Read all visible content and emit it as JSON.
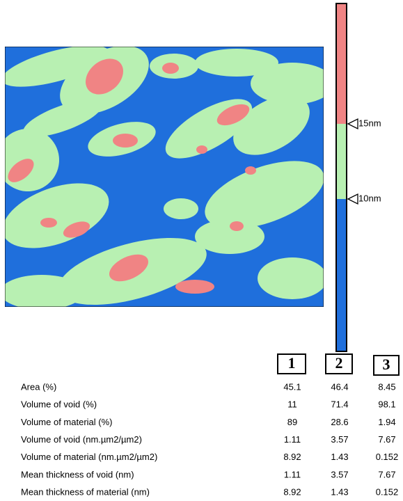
{
  "colorbar": {
    "labels": [
      "15nm",
      "10nm"
    ]
  },
  "columns": [
    "1",
    "2",
    "3"
  ],
  "table": {
    "rows": [
      [
        "Area (%)",
        "45.1",
        "46.4",
        "8.45"
      ],
      [
        "Volume of void (%)",
        "11",
        "71.4",
        "98.1"
      ],
      [
        "Volume of material (%)",
        "89",
        "28.6",
        "1.94"
      ],
      [
        "Volume of void (nm.µm2/µm2)",
        "1.11",
        "3.57",
        "7.67"
      ],
      [
        "Volume of material (nm.µm2/µm2)",
        "8.92",
        "1.43",
        "0.152"
      ],
      [
        "Mean thickness of void (nm)",
        "1.11",
        "3.57",
        "7.67"
      ],
      [
        "Mean thickness of material (nm)",
        "8.92",
        "1.43",
        "0.152"
      ]
    ]
  }
}
